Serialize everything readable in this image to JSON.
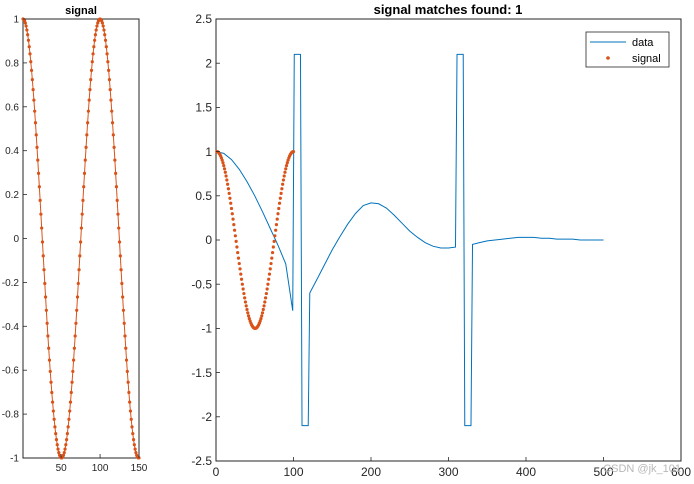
{
  "chart_data": [
    {
      "type": "scatter",
      "title": "signal",
      "xlim": [
        1,
        150
      ],
      "ylim": [
        -1,
        1
      ],
      "xticks": [
        50,
        100,
        150
      ],
      "yticks": [
        -1,
        -0.8,
        -0.6,
        -0.4,
        -0.2,
        0,
        0.2,
        0.4,
        0.6,
        0.8,
        1
      ],
      "xtick_labels": [
        "50",
        "100",
        "150"
      ],
      "ytick_labels": [
        "-1",
        "-0.8",
        "-0.6",
        "-0.4",
        "-0.2",
        "0",
        "0.2",
        "0.4",
        "0.6",
        "0.8",
        "1"
      ],
      "grid": false,
      "series": [
        {
          "color": "#D95319",
          "marker": "dot",
          "line": true,
          "function": "cos(2*pi*(x-1)/99)",
          "x_range": [
            1,
            150
          ],
          "x_step": 1
        }
      ]
    },
    {
      "type": "line",
      "title": "signal matches found: 1",
      "xlim": [
        0,
        600
      ],
      "ylim": [
        -2.5,
        2.5
      ],
      "xticks": [
        0,
        100,
        200,
        300,
        400,
        500,
        600
      ],
      "yticks": [
        -2.5,
        -2,
        -1.5,
        -1,
        -0.5,
        0,
        0.5,
        1,
        1.5,
        2,
        2.5
      ],
      "xtick_labels": [
        "0",
        "100",
        "200",
        "300",
        "400",
        "500",
        "600"
      ],
      "ytick_labels": [
        "-2.5",
        "-2",
        "-1.5",
        "-1",
        "-0.5",
        "0",
        "0.5",
        "1",
        "1.5",
        "2",
        "2.5"
      ],
      "grid": false,
      "legend_position": "top-right",
      "series": [
        {
          "name": "data",
          "color": "#0072BD",
          "line": true,
          "marker": "none",
          "x": [
            0,
            10,
            20,
            30,
            40,
            50,
            60,
            70,
            80,
            90,
            99,
            101,
            109,
            111,
            119,
            121,
            130,
            140,
            150,
            160,
            170,
            180,
            190,
            200,
            210,
            220,
            230,
            240,
            250,
            260,
            270,
            280,
            290,
            300,
            309,
            311,
            319,
            321,
            329,
            331,
            340,
            350,
            360,
            370,
            380,
            390,
            400,
            410,
            420,
            430,
            440,
            450,
            460,
            470,
            480,
            490,
            500
          ],
          "y": [
            1.0,
            0.98,
            0.91,
            0.8,
            0.66,
            0.5,
            0.32,
            0.13,
            -0.06,
            -0.27,
            -0.8,
            2.1,
            2.1,
            -2.1,
            -2.1,
            -0.6,
            -0.45,
            -0.28,
            -0.11,
            0.04,
            0.18,
            0.3,
            0.39,
            0.42,
            0.41,
            0.36,
            0.28,
            0.19,
            0.1,
            0.03,
            -0.03,
            -0.07,
            -0.09,
            -0.09,
            -0.08,
            2.1,
            2.1,
            -2.1,
            -2.1,
            -0.05,
            -0.03,
            -0.01,
            0.0,
            0.01,
            0.02,
            0.03,
            0.03,
            0.03,
            0.02,
            0.02,
            0.01,
            0.01,
            0.01,
            0.0,
            0.0,
            0.0,
            0.0
          ]
        },
        {
          "name": "signal",
          "color": "#D95319",
          "line": false,
          "marker": "dot",
          "function": "cos(2*pi*(x-1)/99)",
          "x_range": [
            1,
            100
          ],
          "x_step": 1
        }
      ]
    }
  ],
  "watermark": "CSDN @jk_101"
}
